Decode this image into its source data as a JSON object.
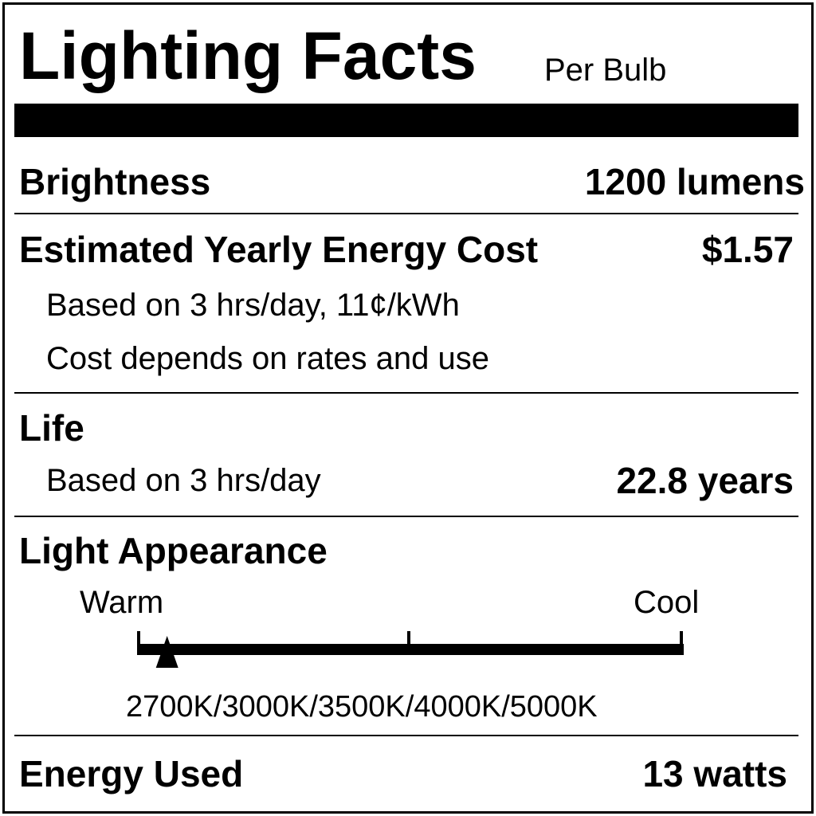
{
  "header": {
    "title": "Lighting Facts",
    "subtitle": "Per Bulb"
  },
  "brightness": {
    "label": "Brightness",
    "value": "1200 lumens"
  },
  "cost": {
    "label": "Estimated Yearly Energy Cost",
    "value": "$1.57",
    "note1": "Based on 3 hrs/day, 11¢/kWh",
    "note2": "Cost depends on rates and use"
  },
  "life": {
    "label": "Life",
    "note": "Based on 3 hrs/day",
    "value": "22.8 years"
  },
  "appearance": {
    "label": "Light Appearance",
    "warm_label": "Warm",
    "cool_label": "Cool",
    "scale_label": "2700K/3000K/3500K/4000K/5000K",
    "marker_position": 0.055
  },
  "energy": {
    "label": "Energy Used",
    "value": "13 watts"
  }
}
